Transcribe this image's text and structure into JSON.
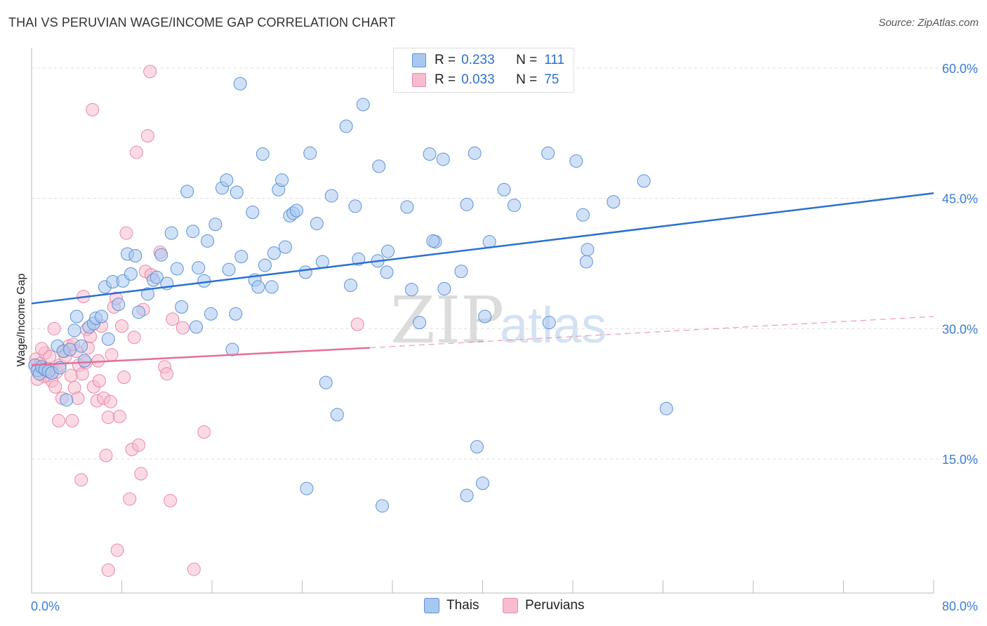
{
  "title": "THAI VS PERUVIAN WAGE/INCOME GAP CORRELATION CHART",
  "source": "Source: ZipAtlas.com",
  "watermark": {
    "zip": "ZIP",
    "atlas": "atlas"
  },
  "legend_top": {
    "rows": [
      {
        "r_label": "R =",
        "r_value": "0.233",
        "n_label": "N =",
        "n_value": "111"
      },
      {
        "r_label": "R =",
        "r_value": "0.033",
        "n_label": "N =",
        "n_value": "75"
      }
    ]
  },
  "legend_bottom": {
    "series1": "Thais",
    "series2": "Peruvians"
  },
  "colors": {
    "thais_fill": "#a9c8f0",
    "thais_stroke": "#5b93d6",
    "thais_line": "#2970d2",
    "peru_fill": "#f7bccd",
    "peru_stroke": "#e78aa8",
    "peru_line": "#e56e97",
    "tick_label": "#3b7dd8",
    "grid": "#dddddd"
  },
  "chart_data": {
    "type": "scatter",
    "title": "THAI VS PERUVIAN WAGE/INCOME GAP CORRELATION CHART",
    "xlabel": "",
    "ylabel": "Wage/Income Gap",
    "xlim": [
      0,
      80
    ],
    "ylim": [
      0,
      62
    ],
    "x_tick_labels": [
      "0.0%",
      "80.0%"
    ],
    "y_ticks": [
      15,
      30,
      45,
      60
    ],
    "y_tick_labels": [
      "15.0%",
      "30.0%",
      "45.0%",
      "60.0%"
    ],
    "grid": true,
    "legend_position": "top-center",
    "series": [
      {
        "name": "Thais",
        "R": 0.233,
        "N": 111,
        "trend": {
          "x": [
            0,
            80
          ],
          "y": [
            32.9,
            45.6
          ],
          "style": "solid"
        },
        "points": [
          [
            0.3,
            25.8
          ],
          [
            0.5,
            25.2
          ],
          [
            0.7,
            24.8
          ],
          [
            0.9,
            25.6
          ],
          [
            1.2,
            25.3
          ],
          [
            1.5,
            25.1
          ],
          [
            1.8,
            24.9
          ],
          [
            2.3,
            28.0
          ],
          [
            2.5,
            25.5
          ],
          [
            2.8,
            27.4
          ],
          [
            3.1,
            21.8
          ],
          [
            3.4,
            27.6
          ],
          [
            3.8,
            29.8
          ],
          [
            4.0,
            31.4
          ],
          [
            4.4,
            28.0
          ],
          [
            4.7,
            26.3
          ],
          [
            5.1,
            30.2
          ],
          [
            5.5,
            30.6
          ],
          [
            5.7,
            31.2
          ],
          [
            6.2,
            31.4
          ],
          [
            6.5,
            34.8
          ],
          [
            6.8,
            28.8
          ],
          [
            7.2,
            35.4
          ],
          [
            7.7,
            32.8
          ],
          [
            8.1,
            35.5
          ],
          [
            8.5,
            38.6
          ],
          [
            8.8,
            36.3
          ],
          [
            9.2,
            38.4
          ],
          [
            9.5,
            31.9
          ],
          [
            10.3,
            34.0
          ],
          [
            10.8,
            35.6
          ],
          [
            11.1,
            35.9
          ],
          [
            11.5,
            38.5
          ],
          [
            12.0,
            35.2
          ],
          [
            12.4,
            41.0
          ],
          [
            12.9,
            36.9
          ],
          [
            13.3,
            32.5
          ],
          [
            13.8,
            45.8
          ],
          [
            14.3,
            41.2
          ],
          [
            14.6,
            30.2
          ],
          [
            14.8,
            37.0
          ],
          [
            15.3,
            35.5
          ],
          [
            15.6,
            40.1
          ],
          [
            15.9,
            31.7
          ],
          [
            16.3,
            42.0
          ],
          [
            16.9,
            46.2
          ],
          [
            17.3,
            47.1
          ],
          [
            17.5,
            36.8
          ],
          [
            17.8,
            27.6
          ],
          [
            18.1,
            31.7
          ],
          [
            18.2,
            45.7
          ],
          [
            18.6,
            38.3
          ],
          [
            19.6,
            43.4
          ],
          [
            19.8,
            35.6
          ],
          [
            20.1,
            34.8
          ],
          [
            20.5,
            50.1
          ],
          [
            20.7,
            37.3
          ],
          [
            21.3,
            34.8
          ],
          [
            21.5,
            38.7
          ],
          [
            21.9,
            46.0
          ],
          [
            22.2,
            47.1
          ],
          [
            22.5,
            39.4
          ],
          [
            22.9,
            43.0
          ],
          [
            23.2,
            43.3
          ],
          [
            23.5,
            43.6
          ],
          [
            24.3,
            36.5
          ],
          [
            24.7,
            50.2
          ],
          [
            25.3,
            42.1
          ],
          [
            25.8,
            37.7
          ],
          [
            26.1,
            23.8
          ],
          [
            26.6,
            45.3
          ],
          [
            27.1,
            20.1
          ],
          [
            27.9,
            53.3
          ],
          [
            28.3,
            35.0
          ],
          [
            28.7,
            44.1
          ],
          [
            29.0,
            38.0
          ],
          [
            30.8,
            48.7
          ],
          [
            30.7,
            37.8
          ],
          [
            31.6,
            38.9
          ],
          [
            31.5,
            36.5
          ],
          [
            33.3,
            44.0
          ],
          [
            33.7,
            34.5
          ],
          [
            34.4,
            30.7
          ],
          [
            35.3,
            50.1
          ],
          [
            35.8,
            40.0
          ],
          [
            35.6,
            40.1
          ],
          [
            36.5,
            49.5
          ],
          [
            36.6,
            34.6
          ],
          [
            38.1,
            36.6
          ],
          [
            38.6,
            44.3
          ],
          [
            39.3,
            50.2
          ],
          [
            39.5,
            16.4
          ],
          [
            40.2,
            31.4
          ],
          [
            40.6,
            40.0
          ],
          [
            41.9,
            46.0
          ],
          [
            42.8,
            44.2
          ],
          [
            45.8,
            50.2
          ],
          [
            45.9,
            30.7
          ],
          [
            48.3,
            49.3
          ],
          [
            48.9,
            43.1
          ],
          [
            49.2,
            37.7
          ],
          [
            49.3,
            39.1
          ],
          [
            51.6,
            44.6
          ],
          [
            54.3,
            47.0
          ],
          [
            56.3,
            20.8
          ],
          [
            40.0,
            12.2
          ],
          [
            31.1,
            9.6
          ],
          [
            24.4,
            11.6
          ],
          [
            18.5,
            58.2
          ],
          [
            29.4,
            55.8
          ],
          [
            38.6,
            10.8
          ]
        ]
      },
      {
        "name": "Peruvians",
        "R": 0.033,
        "N": 75,
        "trend": {
          "x": [
            0,
            30
          ],
          "y": [
            25.8,
            27.8
          ],
          "style": "solid"
        },
        "trend_extension": {
          "x": [
            30,
            80
          ],
          "y": [
            27.8,
            31.4
          ],
          "style": "dashed"
        },
        "points": [
          [
            0.3,
            25.8
          ],
          [
            0.4,
            26.5
          ],
          [
            0.6,
            25.2
          ],
          [
            0.8,
            26.0
          ],
          [
            1.0,
            25.4
          ],
          [
            1.2,
            27.2
          ],
          [
            1.4,
            24.6
          ],
          [
            1.6,
            26.8
          ],
          [
            1.8,
            24.0
          ],
          [
            2.0,
            30.0
          ],
          [
            2.2,
            25.0
          ],
          [
            2.4,
            19.4
          ],
          [
            2.5,
            25.8
          ],
          [
            2.7,
            22.0
          ],
          [
            2.9,
            27.4
          ],
          [
            3.0,
            26.8
          ],
          [
            3.3,
            28.0
          ],
          [
            3.5,
            24.6
          ],
          [
            3.6,
            19.4
          ],
          [
            3.8,
            23.2
          ],
          [
            4.0,
            27.4
          ],
          [
            4.2,
            25.8
          ],
          [
            4.4,
            12.6
          ],
          [
            4.5,
            24.8
          ],
          [
            4.6,
            33.7
          ],
          [
            4.8,
            26.1
          ],
          [
            4.9,
            29.9
          ],
          [
            5.0,
            27.8
          ],
          [
            5.2,
            29.1
          ],
          [
            5.4,
            55.2
          ],
          [
            5.5,
            23.3
          ],
          [
            5.8,
            21.7
          ],
          [
            6.0,
            24.0
          ],
          [
            6.2,
            30.3
          ],
          [
            6.4,
            22.0
          ],
          [
            6.6,
            15.4
          ],
          [
            6.8,
            19.8
          ],
          [
            7.1,
            27.0
          ],
          [
            7.3,
            32.5
          ],
          [
            7.5,
            33.5
          ],
          [
            7.6,
            4.5
          ],
          [
            7.8,
            19.9
          ],
          [
            8.0,
            30.3
          ],
          [
            8.2,
            24.4
          ],
          [
            8.4,
            41.0
          ],
          [
            8.7,
            10.4
          ],
          [
            8.9,
            16.1
          ],
          [
            9.3,
            50.3
          ],
          [
            9.5,
            16.6
          ],
          [
            9.7,
            13.3
          ],
          [
            9.9,
            32.2
          ],
          [
            10.1,
            36.6
          ],
          [
            10.3,
            52.2
          ],
          [
            10.5,
            59.6
          ],
          [
            10.6,
            36.2
          ],
          [
            11.4,
            38.8
          ],
          [
            11.8,
            25.6
          ],
          [
            12.0,
            24.8
          ],
          [
            12.3,
            10.2
          ],
          [
            12.5,
            31.1
          ],
          [
            13.4,
            30.1
          ],
          [
            14.4,
            2.3
          ],
          [
            15.3,
            18.1
          ],
          [
            28.9,
            30.5
          ],
          [
            6.8,
            2.2
          ],
          [
            1.1,
            24.5
          ],
          [
            0.9,
            27.7
          ],
          [
            3.7,
            28.2
          ],
          [
            5.9,
            26.3
          ],
          [
            2.1,
            23.3
          ],
          [
            4.1,
            22.0
          ],
          [
            7.0,
            21.6
          ],
          [
            9.1,
            29.0
          ],
          [
            0.5,
            24.2
          ],
          [
            1.7,
            25.3
          ]
        ]
      }
    ]
  }
}
